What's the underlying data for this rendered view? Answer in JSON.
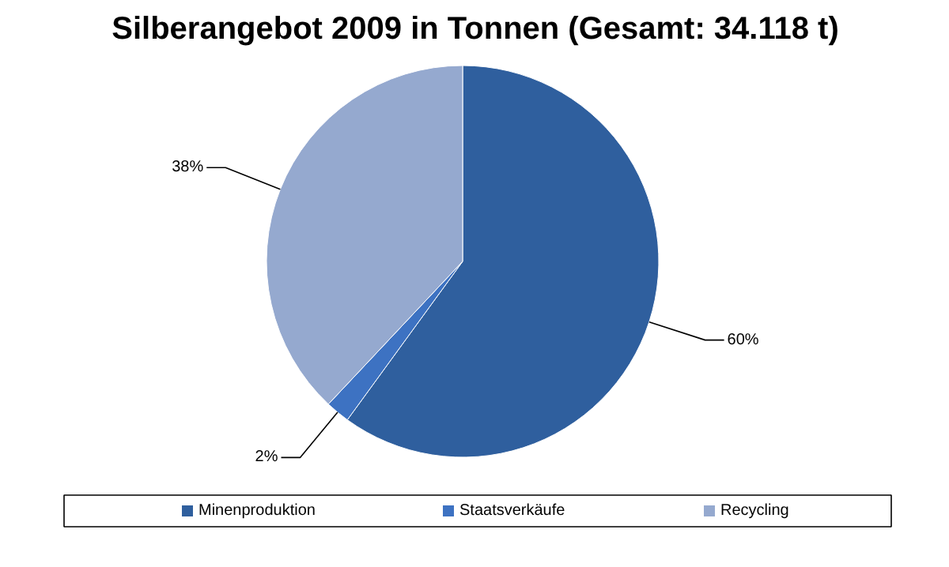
{
  "chart_data": {
    "type": "pie",
    "title": "Silberangebot 2009 in Tonnen (Gesamt: 34.118 t)",
    "categories": [
      "Minenproduktion",
      "Staatsverkäufe",
      "Recycling"
    ],
    "values": [
      60,
      2,
      38
    ],
    "colors": [
      "#2f5f9e",
      "#3d72c2",
      "#95a9cf"
    ],
    "value_labels": [
      "60%",
      "2%",
      "38%"
    ],
    "legend": "bottom"
  }
}
